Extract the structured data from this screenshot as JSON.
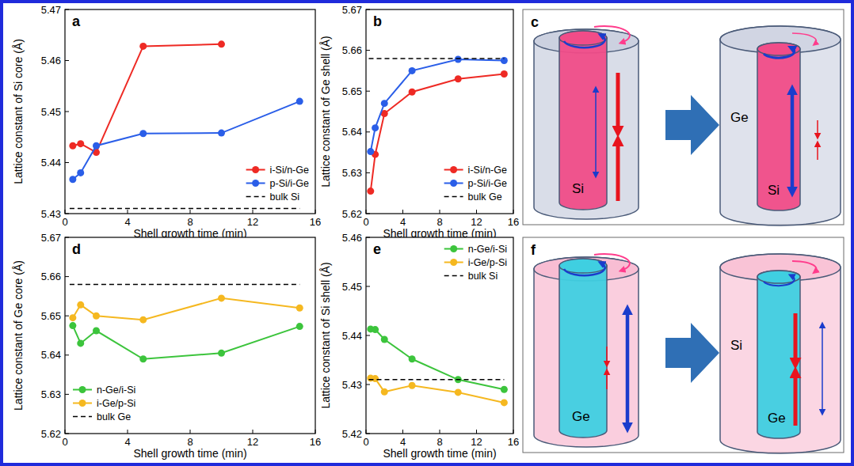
{
  "chart_data": [
    {
      "type": "line",
      "title": "a",
      "x_label": "Shell growth time (min)",
      "y_label": "Lattice constant of Si core (Å)",
      "xlim": [
        0,
        16
      ],
      "xticks": [
        0,
        4,
        8,
        12,
        16
      ],
      "ylim": [
        5.43,
        5.47
      ],
      "yticks": [
        5.43,
        5.44,
        5.45,
        5.46,
        5.47
      ],
      "legend": "lower right",
      "series": [
        {
          "name": "i-Si/n-Ge",
          "color": "#ee2a24",
          "marker": "circle",
          "line_style": "solid",
          "x": [
            0.5,
            1,
            2,
            5,
            10
          ],
          "values": [
            5.4433,
            5.4437,
            5.442,
            5.4628,
            5.4632
          ]
        },
        {
          "name": "p-Si/i-Ge",
          "color": "#2a5ee8",
          "marker": "circle",
          "line_style": "solid",
          "x": [
            0.5,
            1,
            2,
            5,
            10,
            15
          ],
          "values": [
            5.4367,
            5.438,
            5.4433,
            5.4457,
            5.4458,
            5.452
          ]
        },
        {
          "name": "bulk Si",
          "color": "#000000",
          "marker": "none",
          "line_style": "dashed",
          "x": [
            0.3,
            15
          ],
          "values": [
            5.431,
            5.431
          ]
        }
      ]
    },
    {
      "type": "line",
      "title": "b",
      "x_label": "Shell growth time (min)",
      "y_label": "Lattice constant of Ge shell (Å)",
      "xlim": [
        0,
        16
      ],
      "xticks": [
        0,
        4,
        8,
        12,
        16
      ],
      "ylim": [
        5.62,
        5.67
      ],
      "yticks": [
        5.62,
        5.63,
        5.64,
        5.65,
        5.66,
        5.67
      ],
      "legend": "lower right",
      "series": [
        {
          "name": "i-Si/n-Ge",
          "color": "#ee2a24",
          "marker": "circle",
          "line_style": "solid",
          "x": [
            0.5,
            1,
            2,
            5,
            10,
            15
          ],
          "values": [
            5.6255,
            5.6345,
            5.6445,
            5.6498,
            5.653,
            5.6542
          ]
        },
        {
          "name": "p-Si/i-Ge",
          "color": "#2a5ee8",
          "marker": "circle",
          "line_style": "solid",
          "x": [
            0.5,
            1,
            2,
            5,
            10,
            15
          ],
          "values": [
            5.6352,
            5.641,
            5.647,
            5.655,
            5.6578,
            5.6575
          ]
        },
        {
          "name": "bulk Ge",
          "color": "#000000",
          "marker": "none",
          "line_style": "dashed",
          "x": [
            0.3,
            15
          ],
          "values": [
            5.658,
            5.658
          ]
        }
      ]
    },
    {
      "type": "line",
      "title": "d",
      "x_label": "Shell growth time (min)",
      "y_label": "Lattice constant of Ge core (Å)",
      "xlim": [
        0,
        16
      ],
      "xticks": [
        0,
        4,
        8,
        12,
        16
      ],
      "ylim": [
        5.62,
        5.67
      ],
      "yticks": [
        5.62,
        5.63,
        5.64,
        5.65,
        5.66,
        5.67
      ],
      "legend": "lower left",
      "series": [
        {
          "name": "n-Ge/i-Si",
          "color": "#3cc43c",
          "marker": "circle",
          "line_style": "solid",
          "x": [
            0.5,
            1,
            2,
            5,
            10,
            15
          ],
          "values": [
            5.6475,
            5.643,
            5.6462,
            5.639,
            5.6405,
            5.6473
          ]
        },
        {
          "name": "i-Ge/p-Si",
          "color": "#f5b820",
          "marker": "circle",
          "line_style": "solid",
          "x": [
            0.5,
            1,
            2,
            5,
            10,
            15
          ],
          "values": [
            5.6495,
            5.6528,
            5.65,
            5.649,
            5.6545,
            5.652
          ]
        },
        {
          "name": "bulk Ge",
          "color": "#000000",
          "marker": "none",
          "line_style": "dashed",
          "x": [
            0.3,
            15
          ],
          "values": [
            5.658,
            5.658
          ]
        }
      ]
    },
    {
      "type": "line",
      "title": "e",
      "x_label": "Shell growth time (min)",
      "y_label": "Lattice constant of Si shell (Å)",
      "xlim": [
        0,
        16
      ],
      "xticks": [
        0,
        4,
        8,
        12,
        16
      ],
      "ylim": [
        5.42,
        5.46
      ],
      "yticks": [
        5.42,
        5.43,
        5.44,
        5.45,
        5.46
      ],
      "legend": "upper right",
      "series": [
        {
          "name": "n-Ge/i-Si",
          "color": "#3cc43c",
          "marker": "circle",
          "line_style": "solid",
          "x": [
            0.5,
            1,
            2,
            5,
            10,
            15
          ],
          "values": [
            5.4413,
            5.4412,
            5.4392,
            5.4352,
            5.431,
            5.429
          ]
        },
        {
          "name": "i-Ge/p-Si",
          "color": "#f5b820",
          "marker": "circle",
          "line_style": "solid",
          "x": [
            0.5,
            1,
            2,
            5,
            10,
            15
          ],
          "values": [
            5.4313,
            5.4312,
            5.4285,
            5.4298,
            5.4284,
            5.4263
          ]
        },
        {
          "name": "bulk Si",
          "color": "#000000",
          "marker": "none",
          "line_style": "dashed",
          "x": [
            0.3,
            15
          ],
          "values": [
            5.431,
            5.431
          ]
        }
      ]
    }
  ],
  "diagrams": [
    {
      "label": "c",
      "texts": [
        "Si",
        "Ge",
        "Si"
      ]
    },
    {
      "label": "f",
      "texts": [
        "Ge",
        "Si",
        "Ge"
      ]
    }
  ]
}
